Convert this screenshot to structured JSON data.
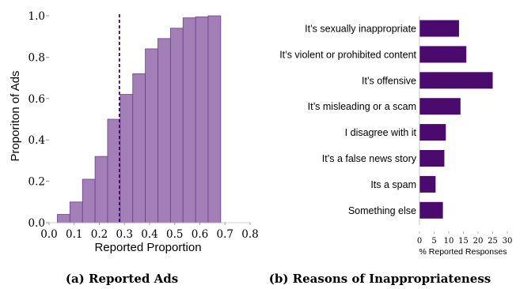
{
  "chart_data": [
    {
      "type": "bar",
      "subtype": "cumulative-histogram",
      "caption": "(a) Reported Ads",
      "xlabel": "Reported Proportion",
      "ylabel": "Proporiton of Ads",
      "xlim": [
        0.0,
        0.8
      ],
      "ylim": [
        0.0,
        1.0
      ],
      "xticks": [
        "0.0",
        "0.1",
        "0.2",
        "0.3",
        "0.4",
        "0.5",
        "0.6",
        "0.7",
        "0.8"
      ],
      "yticks": [
        "0.0",
        "0.2",
        "0.4",
        "0.6",
        "0.8",
        "1.0"
      ],
      "bin_edges": [
        0.033,
        0.083,
        0.133,
        0.183,
        0.233,
        0.283,
        0.333,
        0.383,
        0.433,
        0.483,
        0.533,
        0.583,
        0.633,
        0.683
      ],
      "values": [
        0.04,
        0.1,
        0.21,
        0.32,
        0.5,
        0.62,
        0.72,
        0.84,
        0.89,
        0.94,
        0.99,
        0.995,
        1.0
      ],
      "reference_line_x": 0.28,
      "bar_color": "#a280b7",
      "bar_edge_color": "#6b3f8a",
      "line_color": "#3d0b63",
      "grid": false
    },
    {
      "type": "bar",
      "orientation": "horizontal",
      "caption": "(b) Reasons of Inappropriateness",
      "xlabel": "% Reported Responses",
      "xlim": [
        0,
        30
      ],
      "xticks": [
        "0",
        "5",
        "10",
        "15",
        "20",
        "25",
        "30"
      ],
      "categories": [
        "It’s sexually inappropriate",
        "It’s violent or prohibited content",
        "It’s offensive",
        "It’s misleading or a scam",
        "I disagree with it",
        "It’s a false news story",
        "Its a spam",
        "Something else"
      ],
      "values": [
        13.5,
        16.0,
        25.0,
        14.0,
        9.0,
        8.5,
        5.5,
        8.0
      ],
      "bar_color": "#4b0a6e",
      "grid": false
    }
  ]
}
